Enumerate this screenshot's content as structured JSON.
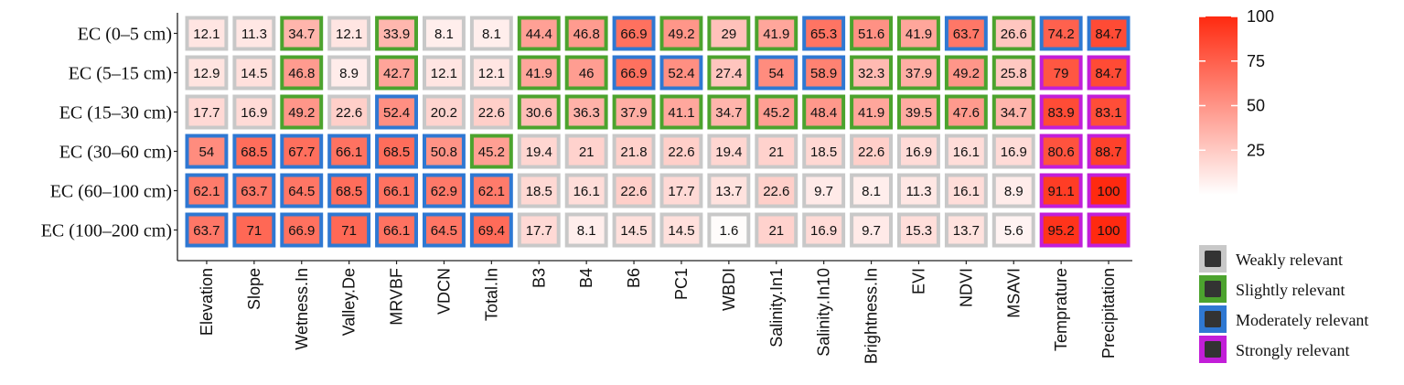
{
  "chart_data": {
    "type": "heatmap",
    "title": "",
    "xlabel": "",
    "ylabel": "",
    "rows": [
      "EC (0–5 cm)",
      "EC (5–15 cm)",
      "EC (15–30 cm)",
      "EC (30–60 cm)",
      "EC (60–100 cm)",
      "EC (100–200 cm)"
    ],
    "columns": [
      "Elevation",
      "Slope",
      "Wetness.In",
      "Valley.De",
      "MRVBF",
      "VDCN",
      "Total.In",
      "B3",
      "B4",
      "B6",
      "PC1",
      "WBDI",
      "Salinity.In1",
      "Salinity.In10",
      "Brightness.In",
      "EVI",
      "NDVI",
      "MSAVI",
      "Temprature",
      "Precipitation"
    ],
    "values": [
      [
        12.1,
        11.3,
        34.7,
        12.1,
        33.9,
        8.1,
        8.1,
        44.4,
        46.8,
        66.9,
        49.2,
        29,
        41.9,
        65.3,
        51.6,
        41.9,
        63.7,
        26.6,
        74.2,
        84.7
      ],
      [
        12.9,
        14.5,
        46.8,
        8.9,
        42.7,
        12.1,
        12.1,
        41.9,
        46,
        66.9,
        52.4,
        27.4,
        54,
        58.9,
        32.3,
        37.9,
        49.2,
        25.8,
        79,
        84.7
      ],
      [
        17.7,
        16.9,
        49.2,
        22.6,
        52.4,
        20.2,
        22.6,
        30.6,
        36.3,
        37.9,
        41.1,
        34.7,
        45.2,
        48.4,
        41.9,
        39.5,
        47.6,
        34.7,
        83.9,
        83.1
      ],
      [
        54,
        68.5,
        67.7,
        66.1,
        68.5,
        50.8,
        45.2,
        19.4,
        21,
        21.8,
        22.6,
        19.4,
        21,
        18.5,
        22.6,
        16.9,
        16.1,
        16.9,
        80.6,
        88.7
      ],
      [
        62.1,
        63.7,
        64.5,
        68.5,
        66.1,
        62.9,
        62.1,
        18.5,
        16.1,
        22.6,
        17.7,
        13.7,
        22.6,
        9.7,
        8.1,
        11.3,
        16.1,
        8.9,
        91.1,
        100
      ],
      [
        63.7,
        71,
        66.9,
        71,
        66.1,
        64.5,
        69.4,
        17.7,
        8.1,
        14.5,
        14.5,
        1.6,
        21,
        16.9,
        9.7,
        15.3,
        13.7,
        5.6,
        95.2,
        100
      ]
    ],
    "relevance": [
      [
        "weak",
        "weak",
        "slight",
        "weak",
        "slight",
        "weak",
        "weak",
        "slight",
        "slight",
        "moderate",
        "slight",
        "slight",
        "slight",
        "moderate",
        "slight",
        "slight",
        "moderate",
        "slight",
        "moderate",
        "moderate"
      ],
      [
        "weak",
        "weak",
        "slight",
        "weak",
        "slight",
        "weak",
        "weak",
        "slight",
        "slight",
        "moderate",
        "moderate",
        "slight",
        "moderate",
        "moderate",
        "slight",
        "slight",
        "slight",
        "slight",
        "strong",
        "strong"
      ],
      [
        "weak",
        "weak",
        "slight",
        "weak",
        "moderate",
        "weak",
        "weak",
        "slight",
        "slight",
        "slight",
        "slight",
        "slight",
        "slight",
        "slight",
        "slight",
        "slight",
        "slight",
        "slight",
        "strong",
        "strong"
      ],
      [
        "moderate",
        "moderate",
        "moderate",
        "moderate",
        "moderate",
        "moderate",
        "slight",
        "weak",
        "weak",
        "weak",
        "weak",
        "weak",
        "weak",
        "weak",
        "weak",
        "weak",
        "weak",
        "weak",
        "strong",
        "strong"
      ],
      [
        "moderate",
        "moderate",
        "moderate",
        "moderate",
        "moderate",
        "moderate",
        "moderate",
        "weak",
        "weak",
        "weak",
        "weak",
        "weak",
        "weak",
        "weak",
        "weak",
        "weak",
        "weak",
        "weak",
        "strong",
        "strong"
      ],
      [
        "moderate",
        "moderate",
        "moderate",
        "moderate",
        "moderate",
        "moderate",
        "moderate",
        "weak",
        "weak",
        "weak",
        "weak",
        "weak",
        "weak",
        "weak",
        "weak",
        "weak",
        "weak",
        "weak",
        "strong",
        "strong"
      ]
    ],
    "colorbar": {
      "range": [
        0,
        100
      ],
      "ticks": [
        25,
        50,
        75,
        100
      ],
      "low_color": "#ffffff",
      "high_color": "#ff2a10",
      "placement": "right"
    },
    "legend": {
      "placement": "bottom-right",
      "items": [
        {
          "key": "weak",
          "label": "Weakly relevant",
          "color": "#c8c8c8"
        },
        {
          "key": "slight",
          "label": "Slightly relevant",
          "color": "#4ca32e"
        },
        {
          "key": "moderate",
          "label": "Moderately relevant",
          "color": "#2f78d2"
        },
        {
          "key": "strong",
          "label": "Strongly relevant",
          "color": "#c21ed8"
        }
      ]
    }
  }
}
